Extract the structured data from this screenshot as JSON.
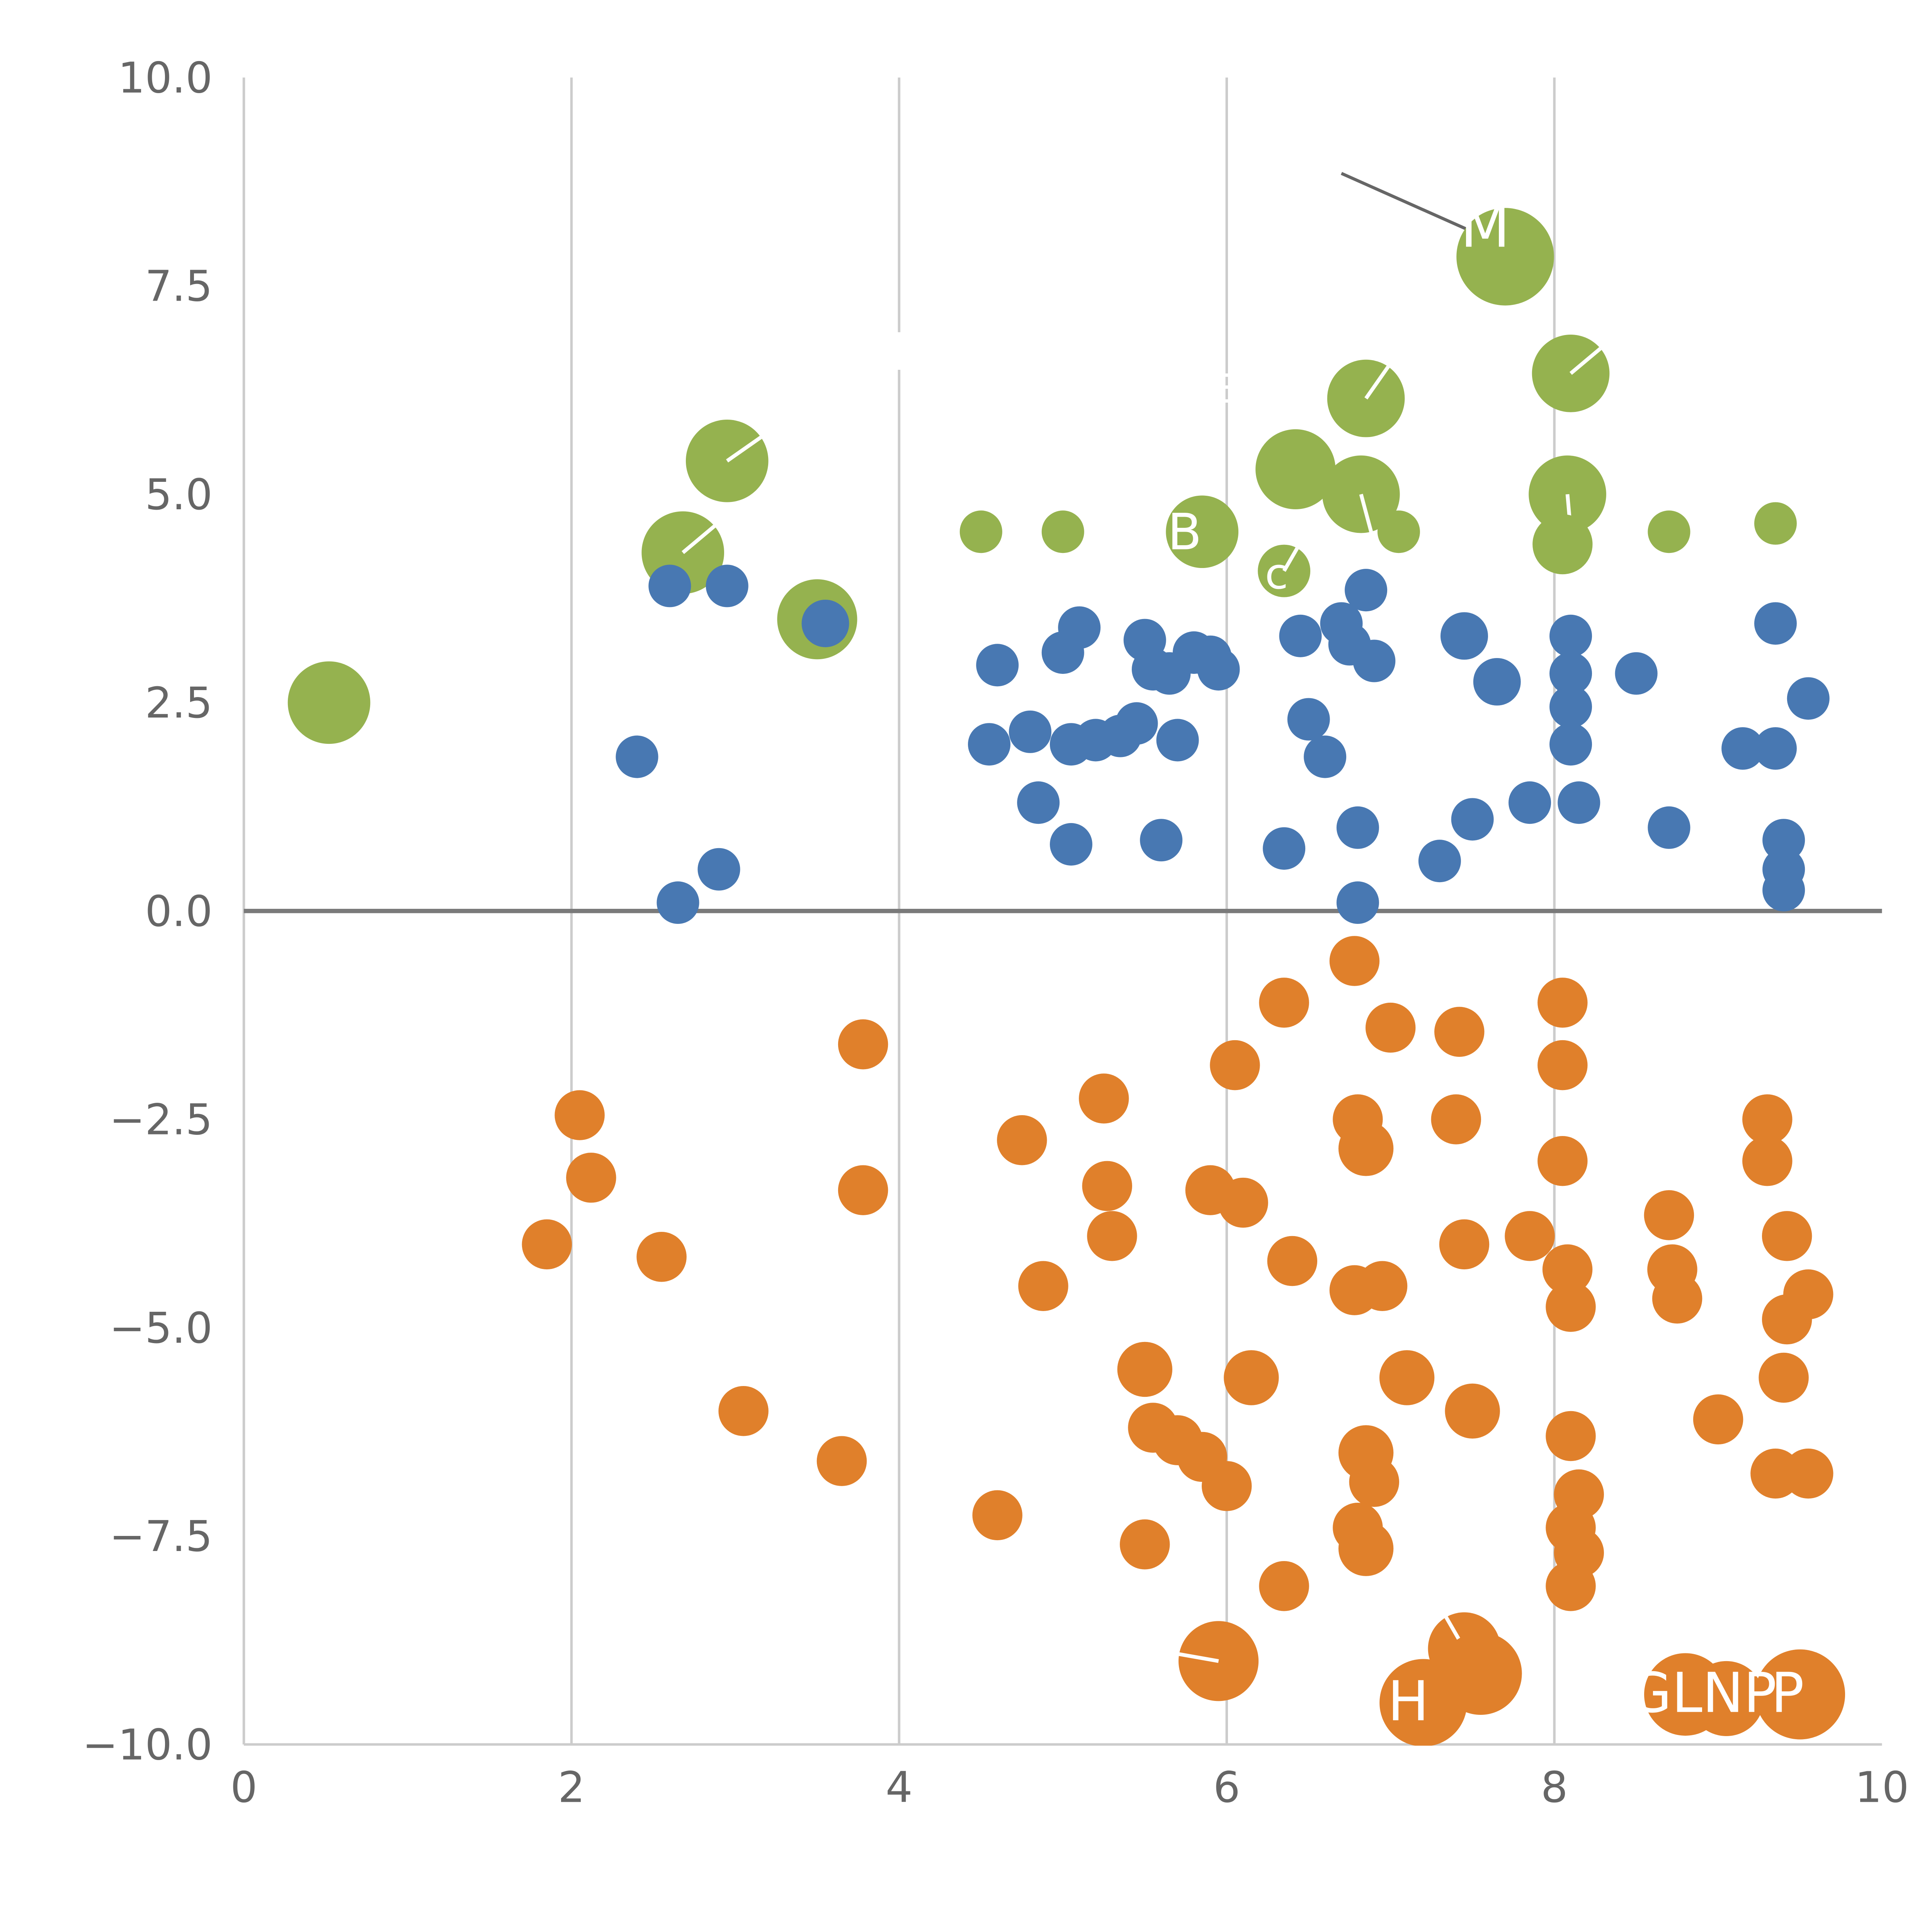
{
  "figure": {
    "background": "#ffffff"
  },
  "chart_data": {
    "type": "scatter",
    "title": "",
    "xlabel": "",
    "ylabel": "",
    "xlim": [
      0,
      10
    ],
    "ylim": [
      -10,
      10
    ],
    "x_ticks": {
      "values": [
        0,
        2,
        4,
        6,
        8,
        10
      ],
      "labels": [
        "0",
        "2",
        "4",
        "6",
        "8",
        "10"
      ]
    },
    "y_ticks": {
      "values": [
        10,
        7.5,
        5,
        2.5,
        0,
        -2.5,
        -5,
        -7.5,
        -10
      ],
      "labels": [
        "10.0",
        "7.5",
        "5.0",
        "2.5",
        "0.0",
        "−2.5",
        "−5.0",
        "−7.5",
        "−10.0"
      ]
    },
    "grid": {
      "vertical_at": [
        2,
        4,
        6,
        8
      ],
      "color": "#cccccc",
      "width": 2
    },
    "axis": {
      "spine_color": "#cccccc",
      "spine_width": 2,
      "tick_label_color": "#666666",
      "tick_label_size": 34
    },
    "zero_line": {
      "y": 0,
      "color": "#7a7a7a",
      "width": 3.5
    },
    "annotation_line": {
      "x1": 6.7,
      "y1": 8.85,
      "x2": 7.5,
      "y2": 8.15,
      "color": "#666666",
      "width": 2.5
    },
    "annotations": [
      {
        "text": "|",
        "x": 4.0,
        "y": 6.6,
        "size": 30,
        "color": "#ffffff"
      },
      {
        "text": "E",
        "x": 6.0,
        "y": 6.1,
        "size": 32,
        "color": "#ffffff"
      }
    ],
    "label_color": "#ffffff",
    "series": [
      {
        "name": "green",
        "color": "#95b24f",
        "points": [
          {
            "x": 0.52,
            "y": 2.5,
            "r": 33
          },
          {
            "x": 2.68,
            "y": 4.3,
            "r": 33,
            "slash": 40
          },
          {
            "x": 2.95,
            "y": 5.4,
            "r": 33,
            "slash": 35
          },
          {
            "x": 3.5,
            "y": 3.5,
            "r": 32
          },
          {
            "x": 4.5,
            "y": 4.55,
            "r": 17
          },
          {
            "x": 5.0,
            "y": 4.55,
            "r": 17
          },
          {
            "x": 5.85,
            "y": 4.55,
            "r": 29,
            "label": "B",
            "label_dx": -14,
            "label_size": 40
          },
          {
            "x": 6.35,
            "y": 4.08,
            "r": 21,
            "label": "c",
            "label_dx": -6,
            "label_size": 34,
            "slash": 60
          },
          {
            "x": 6.42,
            "y": 5.3,
            "r": 32
          },
          {
            "x": 6.85,
            "y": 6.15,
            "r": 31,
            "slash": 55
          },
          {
            "x": 6.82,
            "y": 5.0,
            "r": 31,
            "slash": 285
          },
          {
            "x": 7.05,
            "y": 4.55,
            "r": 17
          },
          {
            "x": 7.7,
            "y": 7.85,
            "r": 39,
            "label": "M",
            "label_dx": -16,
            "label_dy": -8,
            "label_size": 46
          },
          {
            "x": 8.1,
            "y": 6.45,
            "r": 31,
            "slash": 40
          },
          {
            "x": 8.08,
            "y": 5.0,
            "r": 31,
            "slash": 275
          },
          {
            "x": 8.05,
            "y": 4.4,
            "r": 24
          },
          {
            "x": 8.7,
            "y": 4.55,
            "r": 17
          },
          {
            "x": 9.35,
            "y": 4.65,
            "r": 17
          }
        ]
      },
      {
        "name": "blue",
        "color": "#4878b2",
        "points": [
          {
            "x": 2.4,
            "y": 1.85,
            "r": 17
          },
          {
            "x": 2.6,
            "y": 3.9,
            "r": 17
          },
          {
            "x": 2.65,
            "y": 0.1,
            "r": 17
          },
          {
            "x": 2.9,
            "y": 0.5,
            "r": 17
          },
          {
            "x": 2.95,
            "y": 3.9,
            "r": 17
          },
          {
            "x": 3.55,
            "y": 3.45,
            "r": 19
          },
          {
            "x": 4.55,
            "y": 2.0,
            "r": 17
          },
          {
            "x": 4.6,
            "y": 2.95,
            "r": 17
          },
          {
            "x": 4.8,
            "y": 2.15,
            "r": 17
          },
          {
            "x": 4.85,
            "y": 1.3,
            "r": 17
          },
          {
            "x": 5.0,
            "y": 3.1,
            "r": 17
          },
          {
            "x": 5.05,
            "y": 2.0,
            "r": 17
          },
          {
            "x": 5.05,
            "y": 0.8,
            "r": 17
          },
          {
            "x": 5.1,
            "y": 3.4,
            "r": 17
          },
          {
            "x": 5.2,
            "y": 2.05,
            "r": 17
          },
          {
            "x": 5.35,
            "y": 2.1,
            "r": 17
          },
          {
            "x": 5.45,
            "y": 2.25,
            "r": 17
          },
          {
            "x": 5.5,
            "y": 3.25,
            "r": 17
          },
          {
            "x": 5.55,
            "y": 2.9,
            "r": 17
          },
          {
            "x": 5.6,
            "y": 0.85,
            "r": 17
          },
          {
            "x": 5.65,
            "y": 2.85,
            "r": 17
          },
          {
            "x": 5.7,
            "y": 2.05,
            "r": 17
          },
          {
            "x": 5.8,
            "y": 3.1,
            "r": 17
          },
          {
            "x": 5.9,
            "y": 3.05,
            "r": 17
          },
          {
            "x": 5.95,
            "y": 2.9,
            "r": 17
          },
          {
            "x": 6.35,
            "y": 0.75,
            "r": 17
          },
          {
            "x": 6.45,
            "y": 3.3,
            "r": 17
          },
          {
            "x": 6.5,
            "y": 2.3,
            "r": 17
          },
          {
            "x": 6.6,
            "y": 1.85,
            "r": 17
          },
          {
            "x": 6.7,
            "y": 3.45,
            "r": 17
          },
          {
            "x": 6.75,
            "y": 3.2,
            "r": 17
          },
          {
            "x": 6.8,
            "y": 1.0,
            "r": 17
          },
          {
            "x": 6.8,
            "y": 0.1,
            "r": 17
          },
          {
            "x": 6.85,
            "y": 3.85,
            "r": 17
          },
          {
            "x": 6.9,
            "y": 3.0,
            "r": 17
          },
          {
            "x": 7.3,
            "y": 0.6,
            "r": 17
          },
          {
            "x": 7.45,
            "y": 3.3,
            "r": 19
          },
          {
            "x": 7.5,
            "y": 1.1,
            "r": 17
          },
          {
            "x": 7.65,
            "y": 2.75,
            "r": 19
          },
          {
            "x": 7.85,
            "y": 1.3,
            "r": 17
          },
          {
            "x": 8.1,
            "y": 3.3,
            "r": 17
          },
          {
            "x": 8.1,
            "y": 2.85,
            "r": 17
          },
          {
            "x": 8.1,
            "y": 2.45,
            "r": 17
          },
          {
            "x": 8.1,
            "y": 2.0,
            "r": 17
          },
          {
            "x": 8.15,
            "y": 1.3,
            "r": 17
          },
          {
            "x": 8.5,
            "y": 2.85,
            "r": 17
          },
          {
            "x": 8.7,
            "y": 1.0,
            "r": 17
          },
          {
            "x": 9.15,
            "y": 1.95,
            "r": 17
          },
          {
            "x": 9.35,
            "y": 3.45,
            "r": 17
          },
          {
            "x": 9.35,
            "y": 1.95,
            "r": 17
          },
          {
            "x": 9.4,
            "y": 0.85,
            "r": 17
          },
          {
            "x": 9.4,
            "y": 0.5,
            "r": 17
          },
          {
            "x": 9.4,
            "y": 0.25,
            "r": 17
          },
          {
            "x": 9.55,
            "y": 2.55,
            "r": 17
          }
        ]
      },
      {
        "name": "orange",
        "color": "#e0802b",
        "points": [
          {
            "x": 1.85,
            "y": -4.0,
            "r": 20
          },
          {
            "x": 2.05,
            "y": -2.45,
            "r": 20
          },
          {
            "x": 2.12,
            "y": -3.2,
            "r": 20
          },
          {
            "x": 2.55,
            "y": -4.15,
            "r": 20
          },
          {
            "x": 3.05,
            "y": -6.0,
            "r": 20
          },
          {
            "x": 3.65,
            "y": -6.6,
            "r": 20
          },
          {
            "x": 3.78,
            "y": -1.6,
            "r": 20
          },
          {
            "x": 3.78,
            "y": -3.35,
            "r": 20
          },
          {
            "x": 4.6,
            "y": -7.25,
            "r": 20
          },
          {
            "x": 4.75,
            "y": -2.75,
            "r": 20
          },
          {
            "x": 4.88,
            "y": -4.5,
            "r": 20
          },
          {
            "x": 5.25,
            "y": -2.25,
            "r": 20
          },
          {
            "x": 5.27,
            "y": -3.3,
            "r": 20
          },
          {
            "x": 5.3,
            "y": -3.9,
            "r": 20
          },
          {
            "x": 5.5,
            "y": -5.5,
            "r": 22
          },
          {
            "x": 5.55,
            "y": -6.2,
            "r": 20
          },
          {
            "x": 5.5,
            "y": -7.6,
            "r": 20
          },
          {
            "x": 5.7,
            "y": -6.35,
            "r": 20
          },
          {
            "x": 5.85,
            "y": -6.55,
            "r": 20
          },
          {
            "x": 5.9,
            "y": -3.35,
            "r": 20
          },
          {
            "x": 5.95,
            "y": -9.0,
            "r": 32,
            "slash": 170
          },
          {
            "x": 6.0,
            "y": -6.9,
            "r": 20
          },
          {
            "x": 6.05,
            "y": -1.85,
            "r": 20
          },
          {
            "x": 6.1,
            "y": -3.5,
            "r": 20
          },
          {
            "x": 6.15,
            "y": -5.6,
            "r": 22
          },
          {
            "x": 6.35,
            "y": -1.1,
            "r": 20
          },
          {
            "x": 6.4,
            "y": -4.2,
            "r": 20
          },
          {
            "x": 6.35,
            "y": -8.1,
            "r": 20
          },
          {
            "x": 6.78,
            "y": -0.6,
            "r": 20
          },
          {
            "x": 6.8,
            "y": -2.5,
            "r": 20
          },
          {
            "x": 6.85,
            "y": -2.85,
            "r": 22
          },
          {
            "x": 6.78,
            "y": -4.55,
            "r": 20
          },
          {
            "x": 6.95,
            "y": -4.5,
            "r": 20
          },
          {
            "x": 6.85,
            "y": -6.5,
            "r": 22
          },
          {
            "x": 6.9,
            "y": -6.85,
            "r": 20
          },
          {
            "x": 6.8,
            "y": -7.4,
            "r": 20
          },
          {
            "x": 6.85,
            "y": -7.65,
            "r": 22
          },
          {
            "x": 7.0,
            "y": -1.4,
            "r": 20
          },
          {
            "x": 7.1,
            "y": -5.6,
            "r": 22
          },
          {
            "x": 7.2,
            "y": -9.5,
            "r": 35,
            "label": "H",
            "label_dx": -12,
            "label_size": 44
          },
          {
            "x": 7.42,
            "y": -1.45,
            "r": 20
          },
          {
            "x": 7.4,
            "y": -2.5,
            "r": 20
          },
          {
            "x": 7.45,
            "y": -4.0,
            "r": 20
          },
          {
            "x": 7.5,
            "y": -6.0,
            "r": 22
          },
          {
            "x": 7.45,
            "y": -8.85,
            "r": 29,
            "slash": 120
          },
          {
            "x": 7.55,
            "y": -9.15,
            "r": 33
          },
          {
            "x": 7.85,
            "y": -3.9,
            "r": 20
          },
          {
            "x": 8.05,
            "y": -1.1,
            "r": 20
          },
          {
            "x": 8.05,
            "y": -1.85,
            "r": 20
          },
          {
            "x": 8.05,
            "y": -3.0,
            "r": 20
          },
          {
            "x": 8.08,
            "y": -4.3,
            "r": 20
          },
          {
            "x": 8.1,
            "y": -4.75,
            "r": 20
          },
          {
            "x": 8.1,
            "y": -6.3,
            "r": 20
          },
          {
            "x": 8.15,
            "y": -7.0,
            "r": 20
          },
          {
            "x": 8.1,
            "y": -7.4,
            "r": 20
          },
          {
            "x": 8.15,
            "y": -7.7,
            "r": 20
          },
          {
            "x": 8.1,
            "y": -8.1,
            "r": 20
          },
          {
            "x": 8.7,
            "y": -3.65,
            "r": 20
          },
          {
            "x": 8.72,
            "y": -4.3,
            "r": 20
          },
          {
            "x": 8.75,
            "y": -4.65,
            "r": 20
          },
          {
            "x": 9.0,
            "y": -6.1,
            "r": 20
          },
          {
            "x": 9.3,
            "y": -2.5,
            "r": 20
          },
          {
            "x": 9.3,
            "y": -3.0,
            "r": 20
          },
          {
            "x": 9.42,
            "y": -3.9,
            "r": 20
          },
          {
            "x": 9.42,
            "y": -4.9,
            "r": 20
          },
          {
            "x": 9.55,
            "y": -4.6,
            "r": 20
          },
          {
            "x": 9.4,
            "y": -5.6,
            "r": 20
          },
          {
            "x": 9.35,
            "y": -6.75,
            "r": 20
          },
          {
            "x": 9.55,
            "y": -6.75,
            "r": 20
          },
          {
            "x": 8.8,
            "y": -9.4,
            "r": 33,
            "label": "GLNP",
            "label_dx": 14,
            "label_size": 44
          },
          {
            "x": 9.05,
            "y": -9.45,
            "r": 30
          },
          {
            "x": 9.5,
            "y": -9.4,
            "r": 36,
            "label": "P",
            "label_dx": -10,
            "label_size": 44
          }
        ]
      }
    ]
  }
}
